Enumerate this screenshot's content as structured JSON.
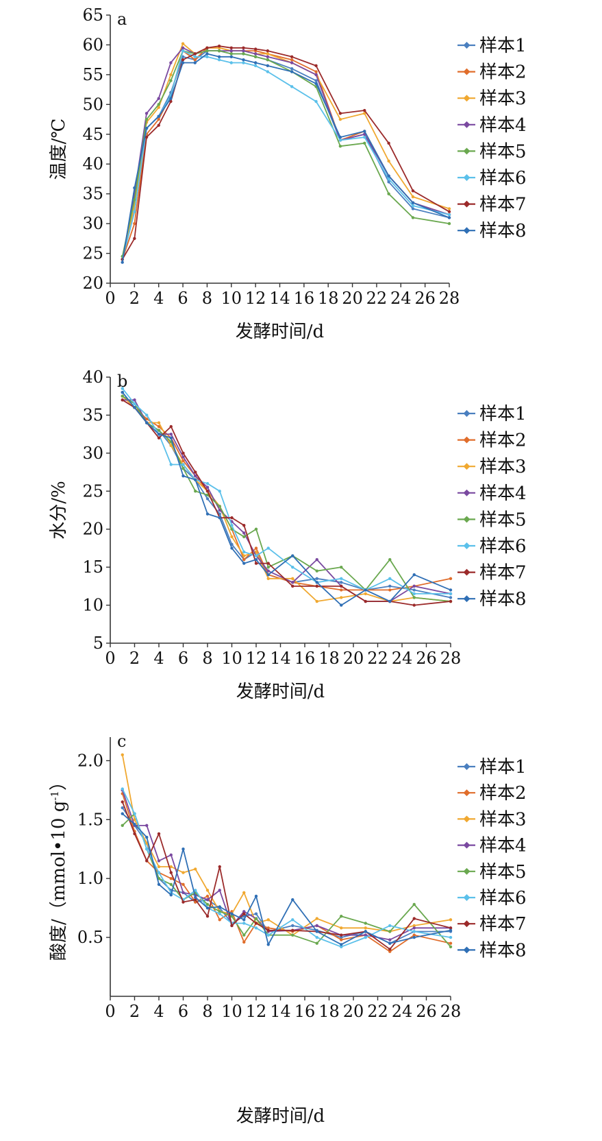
{
  "chart_data": [
    {
      "type": "line",
      "panel_label": "a",
      "xlabel": "发酵时间/d",
      "ylabel": "温度/℃",
      "xlim": [
        0,
        28
      ],
      "ylim": [
        20,
        65
      ],
      "xticks": [
        0,
        2,
        4,
        6,
        8,
        10,
        12,
        14,
        16,
        18,
        20,
        22,
        24,
        26,
        28
      ],
      "yticks": [
        20,
        25,
        30,
        35,
        40,
        45,
        50,
        55,
        60,
        65
      ],
      "x": [
        1,
        2,
        3,
        4,
        5,
        6,
        7,
        8,
        9,
        10,
        11,
        12,
        13,
        15,
        17,
        19,
        21,
        23,
        25,
        28
      ],
      "legend_position": "right",
      "grid": false,
      "series": [
        {
          "name": "样本1",
          "color": "#4a7fbf",
          "values": [
            24.0,
            32.0,
            46.0,
            48.0,
            52.0,
            58.0,
            57.5,
            59.0,
            59.0,
            58.5,
            58.5,
            58.0,
            57.5,
            56.0,
            54.0,
            44.0,
            45.0,
            37.0,
            32.5,
            31.0
          ]
        },
        {
          "name": "样本2",
          "color": "#e06d2b",
          "values": [
            24.0,
            30.0,
            45.0,
            47.5,
            51.5,
            59.0,
            57.5,
            59.5,
            59.5,
            59.0,
            59.0,
            59.0,
            58.5,
            57.5,
            55.5,
            44.0,
            45.5,
            38.0,
            33.5,
            31.5
          ]
        },
        {
          "name": "样本3",
          "color": "#f0a830",
          "values": [
            24.0,
            33.0,
            47.0,
            49.5,
            55.0,
            60.2,
            58.5,
            59.5,
            59.5,
            59.0,
            59.0,
            58.5,
            58.5,
            57.0,
            55.0,
            47.5,
            48.5,
            40.5,
            34.5,
            32.5
          ]
        },
        {
          "name": "样本4",
          "color": "#7a49a0",
          "values": [
            24.0,
            35.0,
            48.5,
            51.0,
            57.0,
            59.5,
            58.5,
            59.0,
            59.0,
            59.0,
            59.0,
            58.5,
            58.0,
            57.0,
            55.0,
            44.0,
            45.0,
            38.0,
            33.5,
            31.5
          ]
        },
        {
          "name": "样本5",
          "color": "#6aa84f",
          "values": [
            24.5,
            34.0,
            47.5,
            50.0,
            54.0,
            59.0,
            58.5,
            59.0,
            59.0,
            58.5,
            58.5,
            58.0,
            57.5,
            55.5,
            53.0,
            43.0,
            43.5,
            35.0,
            31.0,
            30.0
          ]
        },
        {
          "name": "样本6",
          "color": "#5bc0ea",
          "values": [
            24.0,
            32.0,
            46.0,
            48.0,
            51.5,
            59.0,
            58.0,
            58.0,
            57.5,
            57.0,
            57.0,
            56.5,
            55.5,
            53.0,
            50.5,
            44.0,
            44.5,
            37.5,
            33.0,
            31.5
          ]
        },
        {
          "name": "样本7",
          "color": "#9b2a2a",
          "values": [
            24.0,
            27.5,
            44.5,
            46.5,
            50.5,
            57.5,
            58.5,
            59.5,
            59.8,
            59.5,
            59.5,
            59.3,
            59.0,
            58.0,
            56.5,
            48.5,
            49.0,
            43.5,
            35.5,
            32.0
          ]
        },
        {
          "name": "样本8",
          "color": "#2f6fb5",
          "values": [
            23.5,
            36.0,
            46.0,
            48.0,
            51.0,
            57.0,
            57.0,
            58.5,
            58.0,
            58.0,
            57.5,
            57.0,
            56.5,
            55.5,
            53.5,
            44.5,
            45.5,
            38.0,
            33.5,
            31.0
          ]
        }
      ]
    },
    {
      "type": "line",
      "panel_label": "b",
      "xlabel": "发酵时间/d",
      "ylabel": "水分/%",
      "xlim": [
        0,
        28
      ],
      "ylim": [
        5,
        40
      ],
      "xticks": [
        0,
        2,
        4,
        6,
        8,
        10,
        12,
        14,
        16,
        18,
        20,
        22,
        24,
        26,
        28
      ],
      "yticks": [
        5,
        10,
        15,
        20,
        25,
        30,
        35,
        40
      ],
      "x": [
        1,
        2,
        3,
        4,
        5,
        6,
        7,
        8,
        9,
        10,
        11,
        12,
        13,
        15,
        17,
        19,
        21,
        23,
        25,
        28
      ],
      "legend_position": "right",
      "grid": false,
      "series": [
        {
          "name": "样本1",
          "color": "#4a7fbf",
          "values": [
            38.0,
            36.0,
            34.0,
            33.0,
            31.0,
            28.0,
            26.5,
            24.0,
            22.0,
            18.0,
            16.0,
            17.0,
            14.0,
            13.0,
            13.5,
            13.0,
            12.0,
            12.5,
            12.0,
            11.0
          ]
        },
        {
          "name": "样本2",
          "color": "#e06d2b",
          "values": [
            37.5,
            36.0,
            34.5,
            33.5,
            32.0,
            29.0,
            27.0,
            25.0,
            23.0,
            20.0,
            16.0,
            17.5,
            14.0,
            13.0,
            12.5,
            12.0,
            12.0,
            12.0,
            12.5,
            13.5
          ]
        },
        {
          "name": "样本3",
          "color": "#f0a830",
          "values": [
            37.5,
            36.0,
            34.0,
            34.0,
            31.0,
            28.5,
            26.5,
            25.0,
            23.0,
            19.0,
            16.5,
            17.0,
            13.5,
            13.5,
            10.5,
            11.0,
            11.5,
            10.5,
            11.0,
            10.5
          ]
        },
        {
          "name": "样本4",
          "color": "#7a49a0",
          "values": [
            37.0,
            37.0,
            34.0,
            32.5,
            32.5,
            29.5,
            27.0,
            25.5,
            22.5,
            21.0,
            19.5,
            16.5,
            14.5,
            13.0,
            16.0,
            12.5,
            10.5,
            10.5,
            12.5,
            11.5
          ]
        },
        {
          "name": "样本5",
          "color": "#6aa84f",
          "values": [
            37.5,
            36.5,
            34.0,
            33.0,
            31.5,
            28.0,
            25.0,
            24.5,
            23.0,
            20.0,
            19.0,
            20.0,
            15.0,
            16.5,
            14.5,
            15.0,
            12.0,
            16.0,
            11.0,
            10.5
          ]
        },
        {
          "name": "样本6",
          "color": "#5bc0ea",
          "values": [
            38.5,
            36.5,
            35.0,
            32.5,
            28.5,
            28.5,
            26.5,
            26.0,
            25.0,
            20.5,
            17.0,
            16.5,
            17.5,
            15.0,
            13.0,
            13.5,
            12.0,
            13.5,
            11.5,
            11.5
          ]
        },
        {
          "name": "样本7",
          "color": "#9b2a2a",
          "values": [
            37.0,
            36.0,
            34.0,
            32.0,
            33.5,
            30.0,
            27.5,
            25.0,
            21.5,
            21.5,
            20.5,
            15.5,
            15.5,
            12.5,
            12.5,
            12.5,
            10.5,
            10.5,
            10.0,
            10.5
          ]
        },
        {
          "name": "样本8",
          "color": "#2f6fb5",
          "values": [
            38.0,
            36.0,
            34.0,
            32.5,
            32.0,
            27.0,
            26.5,
            22.0,
            21.5,
            17.5,
            15.5,
            16.0,
            14.0,
            16.5,
            13.0,
            10.0,
            12.0,
            10.5,
            14.0,
            12.0
          ]
        }
      ]
    },
    {
      "type": "line",
      "panel_label": "c",
      "xlabel": "发酵时间/d",
      "ylabel": "酸度/（mmol•10 g",
      "ylabel_sup": "-1",
      "ylabel_end": "）",
      "xlim": [
        0,
        28
      ],
      "ylim": [
        0,
        2.2
      ],
      "xticks": [
        0,
        2,
        4,
        6,
        8,
        10,
        12,
        14,
        16,
        18,
        20,
        22,
        24,
        26,
        28
      ],
      "yticks": [
        "0.5",
        "1.0",
        "1.5",
        "2.0"
      ],
      "x": [
        1,
        2,
        3,
        4,
        5,
        6,
        7,
        8,
        9,
        10,
        11,
        12,
        13,
        15,
        17,
        19,
        21,
        23,
        25,
        28
      ],
      "legend_position": "right",
      "grid": false,
      "series": [
        {
          "name": "样本1",
          "color": "#4a7fbf",
          "values": [
            1.6,
            1.45,
            1.3,
            1.0,
            0.9,
            0.88,
            0.8,
            0.82,
            0.75,
            0.62,
            0.68,
            0.7,
            0.55,
            0.6,
            0.56,
            0.5,
            0.55,
            0.45,
            0.55,
            0.55
          ]
        },
        {
          "name": "样本2",
          "color": "#e06d2b",
          "values": [
            1.72,
            1.4,
            1.15,
            1.05,
            1.0,
            0.95,
            0.8,
            0.85,
            0.65,
            0.72,
            0.46,
            0.62,
            0.58,
            0.55,
            0.6,
            0.48,
            0.52,
            0.38,
            0.52,
            0.45
          ]
        },
        {
          "name": "样本3",
          "color": "#f0a830",
          "values": [
            2.05,
            1.5,
            1.3,
            1.1,
            1.1,
            1.05,
            1.08,
            0.9,
            0.72,
            0.7,
            0.88,
            0.62,
            0.65,
            0.52,
            0.66,
            0.58,
            0.58,
            0.55,
            0.6,
            0.65
          ]
        },
        {
          "name": "样本4",
          "color": "#7a49a0",
          "values": [
            1.75,
            1.45,
            1.45,
            1.15,
            1.2,
            0.88,
            0.86,
            0.82,
            0.9,
            0.6,
            0.72,
            0.66,
            0.55,
            0.56,
            0.6,
            0.52,
            0.52,
            0.48,
            0.58,
            0.58
          ]
        },
        {
          "name": "样本5",
          "color": "#6aa84f",
          "values": [
            1.45,
            1.55,
            1.25,
            1.0,
            0.95,
            0.82,
            0.88,
            0.78,
            0.72,
            0.68,
            0.52,
            0.66,
            0.52,
            0.52,
            0.45,
            0.68,
            0.62,
            0.55,
            0.78,
            0.42
          ]
        },
        {
          "name": "样本6",
          "color": "#5bc0ea",
          "values": [
            1.76,
            1.55,
            1.25,
            1.05,
            0.88,
            0.82,
            0.9,
            0.75,
            0.7,
            0.62,
            0.62,
            0.58,
            0.52,
            0.65,
            0.5,
            0.42,
            0.5,
            0.6,
            0.55,
            0.5
          ]
        },
        {
          "name": "样本7",
          "color": "#9b2a2a",
          "values": [
            1.65,
            1.38,
            1.15,
            1.38,
            1.05,
            0.8,
            0.82,
            0.68,
            1.1,
            0.6,
            0.7,
            0.62,
            0.56,
            0.56,
            0.55,
            0.52,
            0.55,
            0.4,
            0.66,
            0.58
          ]
        },
        {
          "name": "样本8",
          "color": "#2f6fb5",
          "values": [
            1.55,
            1.46,
            1.35,
            0.95,
            0.86,
            1.25,
            0.84,
            0.75,
            0.76,
            0.7,
            0.65,
            0.85,
            0.44,
            0.82,
            0.55,
            0.44,
            0.55,
            0.45,
            0.5,
            0.56
          ]
        }
      ]
    }
  ]
}
